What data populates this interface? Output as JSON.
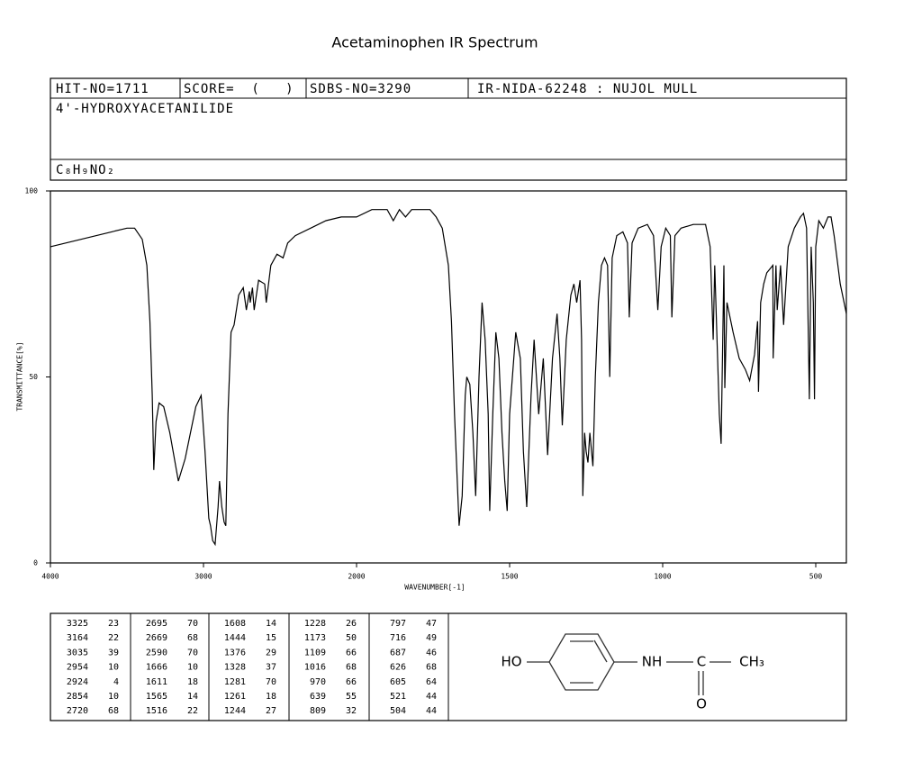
{
  "title": "Acetaminophen IR Spectrum",
  "header": {
    "hit_no": "HIT-NO=1711",
    "score": "SCORE=  (   )",
    "sdbs_no": "SDBS-NO=3290",
    "method": "IR-NIDA-62248 : NUJOL MULL",
    "name": "4'-HYDROXYACETANILIDE",
    "formula": "C₈H₉NO₂"
  },
  "chart_data": {
    "type": "line",
    "xlabel": "WAVENUMBER[-1]",
    "ylabel": "TRANSMITTANCE[%]",
    "x": [
      4000,
      3800,
      3600,
      3500,
      3450,
      3400,
      3370,
      3350,
      3335,
      3325,
      3310,
      3290,
      3260,
      3220,
      3164,
      3120,
      3080,
      3050,
      3015,
      2990,
      2965,
      2954,
      2940,
      2924,
      2905,
      2895,
      2880,
      2865,
      2854,
      2840,
      2820,
      2800,
      2770,
      2740,
      2720,
      2700,
      2695,
      2680,
      2669,
      2640,
      2600,
      2590,
      2560,
      2520,
      2480,
      2450,
      2400,
      2300,
      2200,
      2100,
      2000,
      1950,
      1900,
      1880,
      1860,
      1840,
      1820,
      1800,
      1760,
      1740,
      1720,
      1700,
      1690,
      1680,
      1670,
      1665,
      1655,
      1645,
      1640,
      1630,
      1620,
      1611,
      1600,
      1590,
      1580,
      1570,
      1565,
      1555,
      1545,
      1535,
      1525,
      1516,
      1508,
      1500,
      1480,
      1465,
      1455,
      1444,
      1430,
      1420,
      1405,
      1390,
      1376,
      1360,
      1345,
      1336,
      1328,
      1315,
      1300,
      1290,
      1281,
      1270,
      1265,
      1261,
      1255,
      1250,
      1244,
      1238,
      1228,
      1220,
      1210,
      1200,
      1190,
      1180,
      1173,
      1165,
      1150,
      1130,
      1115,
      1109,
      1100,
      1080,
      1050,
      1030,
      1016,
      1005,
      990,
      975,
      970,
      960,
      940,
      900,
      860,
      845,
      835,
      830,
      815,
      809,
      800,
      797,
      790,
      770,
      750,
      730,
      716,
      700,
      690,
      687,
      680,
      670,
      660,
      640,
      639,
      630,
      626,
      615,
      605,
      590,
      570,
      550,
      540,
      530,
      521,
      515,
      508,
      504,
      500,
      490,
      475,
      460,
      450,
      440,
      420,
      400
    ],
    "series": [
      {
        "color": "#000000",
        "values": [
          85,
          87,
          89,
          90,
          90,
          87,
          80,
          65,
          45,
          25,
          38,
          43,
          42,
          35,
          22,
          28,
          36,
          42,
          45,
          30,
          12,
          10,
          6,
          5,
          15,
          22,
          15,
          11,
          10,
          40,
          62,
          64,
          72,
          74,
          68,
          73,
          70,
          74,
          68,
          76,
          75,
          70,
          80,
          83,
          82,
          86,
          88,
          90,
          92,
          93,
          93,
          95,
          95,
          92,
          95,
          93,
          95,
          95,
          95,
          93,
          90,
          80,
          65,
          40,
          20,
          10,
          18,
          45,
          50,
          48,
          35,
          18,
          50,
          70,
          60,
          40,
          14,
          40,
          62,
          55,
          35,
          22,
          14,
          40,
          62,
          55,
          30,
          15,
          45,
          60,
          40,
          55,
          29,
          55,
          67,
          55,
          37,
          60,
          72,
          75,
          70,
          76,
          60,
          18,
          35,
          30,
          27,
          35,
          26,
          50,
          70,
          80,
          82,
          80,
          50,
          82,
          88,
          89,
          86,
          66,
          86,
          90,
          91,
          88,
          68,
          85,
          90,
          88,
          66,
          88,
          90,
          91,
          91,
          85,
          60,
          80,
          40,
          32,
          80,
          47,
          70,
          62,
          55,
          52,
          49,
          56,
          65,
          46,
          70,
          75,
          78,
          80,
          55,
          80,
          68,
          80,
          64,
          85,
          90,
          93,
          94,
          90,
          44,
          85,
          70,
          44,
          85,
          92,
          90,
          93,
          93,
          88,
          75,
          67
        ]
      }
    ],
    "xlim": [
      4000,
      400
    ],
    "ylim": [
      0,
      100
    ],
    "xticks": [
      4000,
      3000,
      2000,
      1500,
      1000,
      500
    ],
    "yticks": [
      0,
      50,
      100
    ]
  },
  "peak_table": [
    [
      [
        3325,
        23
      ],
      [
        3164,
        22
      ],
      [
        3035,
        39
      ],
      [
        2954,
        10
      ],
      [
        2924,
        4
      ],
      [
        2854,
        10
      ],
      [
        2720,
        68
      ]
    ],
    [
      [
        2695,
        70
      ],
      [
        2669,
        68
      ],
      [
        2590,
        70
      ],
      [
        1666,
        10
      ],
      [
        1611,
        18
      ],
      [
        1565,
        14
      ],
      [
        1516,
        22
      ]
    ],
    [
      [
        1608,
        14
      ],
      [
        1444,
        15
      ],
      [
        1376,
        29
      ],
      [
        1328,
        37
      ],
      [
        1281,
        70
      ],
      [
        1261,
        18
      ],
      [
        1244,
        27
      ]
    ],
    [
      [
        1228,
        26
      ],
      [
        1173,
        50
      ],
      [
        1109,
        66
      ],
      [
        1016,
        68
      ],
      [
        970,
        66
      ],
      [
        639,
        55
      ],
      [
        809,
        32
      ]
    ],
    [
      [
        797,
        47
      ],
      [
        716,
        49
      ],
      [
        687,
        46
      ],
      [
        626,
        68
      ],
      [
        605,
        64
      ],
      [
        521,
        44
      ],
      [
        504,
        44
      ]
    ]
  ],
  "structure": {
    "hydroxyl": "HO",
    "amine": "NH",
    "carbon": "C",
    "methyl": "CH₃",
    "oxygen": "O"
  }
}
